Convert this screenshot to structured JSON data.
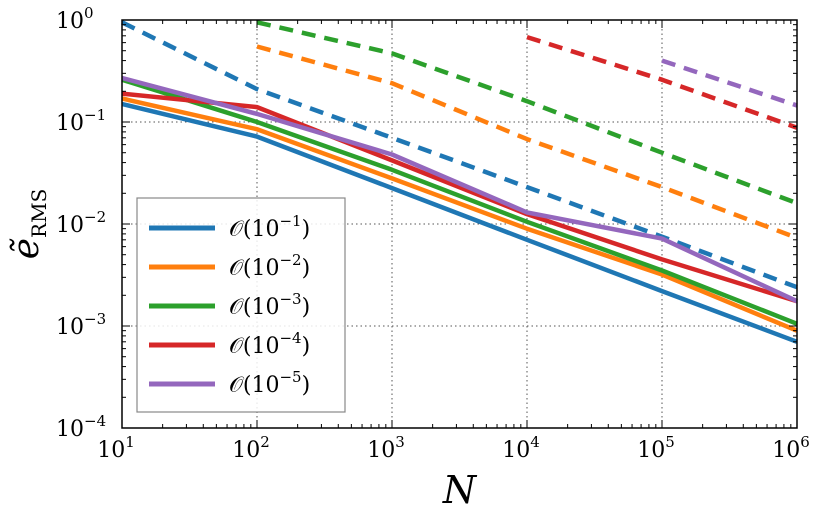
{
  "chart_data": {
    "type": "line",
    "xscale": "log",
    "yscale": "log",
    "xlabel": "N",
    "ylabel_main": "ẽ",
    "ylabel_sub": "RMS",
    "xlim": [
      10,
      1000000
    ],
    "ylim": [
      0.0001,
      1
    ],
    "x_ticks": [
      {
        "value": 10,
        "base": "10",
        "exp": "1"
      },
      {
        "value": 100,
        "base": "10",
        "exp": "2"
      },
      {
        "value": 1000,
        "base": "10",
        "exp": "3"
      },
      {
        "value": 10000,
        "base": "10",
        "exp": "4"
      },
      {
        "value": 100000,
        "base": "10",
        "exp": "5"
      },
      {
        "value": 1000000,
        "base": "10",
        "exp": "6"
      }
    ],
    "y_ticks": [
      {
        "value": 0.0001,
        "base": "10",
        "exp": "−4"
      },
      {
        "value": 0.001,
        "base": "10",
        "exp": "−3"
      },
      {
        "value": 0.01,
        "base": "10",
        "exp": "−2"
      },
      {
        "value": 0.1,
        "base": "10",
        "exp": "−1"
      },
      {
        "value": 1,
        "base": "10",
        "exp": "0"
      }
    ],
    "grid": true,
    "legend_position": "bottom-left",
    "series": [
      {
        "name": "O(10^-1)",
        "legend_base": "𝒪(10",
        "legend_exp": "−1",
        "legend_close": ")",
        "color": "#1f77b4",
        "solid": {
          "x": [
            10,
            100,
            1000,
            10000,
            100000,
            1000000
          ],
          "y": [
            0.15,
            0.072,
            0.0225,
            0.007,
            0.0022,
            0.0007
          ]
        },
        "dashed": {
          "x": [
            10,
            100,
            1000,
            10000,
            100000,
            1000000
          ],
          "y": [
            0.95,
            0.21,
            0.07,
            0.023,
            0.0075,
            0.0024
          ]
        }
      },
      {
        "name": "O(10^-2)",
        "legend_base": "𝒪(10",
        "legend_exp": "−2",
        "legend_close": ")",
        "color": "#ff7f0e",
        "solid": {
          "x": [
            10,
            100,
            1000,
            10000,
            100000,
            1000000
          ],
          "y": [
            0.17,
            0.085,
            0.028,
            0.009,
            0.0032,
            0.0009
          ]
        },
        "dashed": {
          "x": [
            100,
            1000,
            10000,
            100000,
            1000000
          ],
          "y": [
            0.55,
            0.24,
            0.068,
            0.023,
            0.0073
          ]
        }
      },
      {
        "name": "O(10^-3)",
        "legend_base": "𝒪(10",
        "legend_exp": "−3",
        "legend_close": ")",
        "color": "#2ca02c",
        "solid": {
          "x": [
            10,
            100,
            1000,
            10000,
            100000,
            1000000
          ],
          "y": [
            0.26,
            0.1,
            0.034,
            0.0105,
            0.0035,
            0.00105
          ]
        },
        "dashed": {
          "x": [
            100,
            1000,
            10000,
            100000,
            1000000
          ],
          "y": [
            0.95,
            0.47,
            0.16,
            0.05,
            0.016
          ]
        }
      },
      {
        "name": "O(10^-4)",
        "legend_base": "𝒪(10",
        "legend_exp": "−4",
        "legend_close": ")",
        "color": "#d62728",
        "solid": {
          "x": [
            10,
            100,
            1000,
            10000,
            100000,
            1000000
          ],
          "y": [
            0.19,
            0.14,
            0.042,
            0.0125,
            0.0045,
            0.00175
          ]
        },
        "dashed": {
          "x": [
            10000,
            100000,
            1000000
          ],
          "y": [
            0.68,
            0.26,
            0.088
          ]
        }
      },
      {
        "name": "O(10^-5)",
        "legend_base": "𝒪(10",
        "legend_exp": "−5",
        "legend_close": ")",
        "color": "#9467bd",
        "solid": {
          "x": [
            10,
            100,
            1000,
            10000,
            100000,
            1000000
          ],
          "y": [
            0.27,
            0.12,
            0.048,
            0.013,
            0.0072,
            0.00175
          ]
        },
        "dashed": {
          "x": [
            100000,
            1000000
          ],
          "y": [
            0.4,
            0.145
          ]
        }
      }
    ]
  }
}
